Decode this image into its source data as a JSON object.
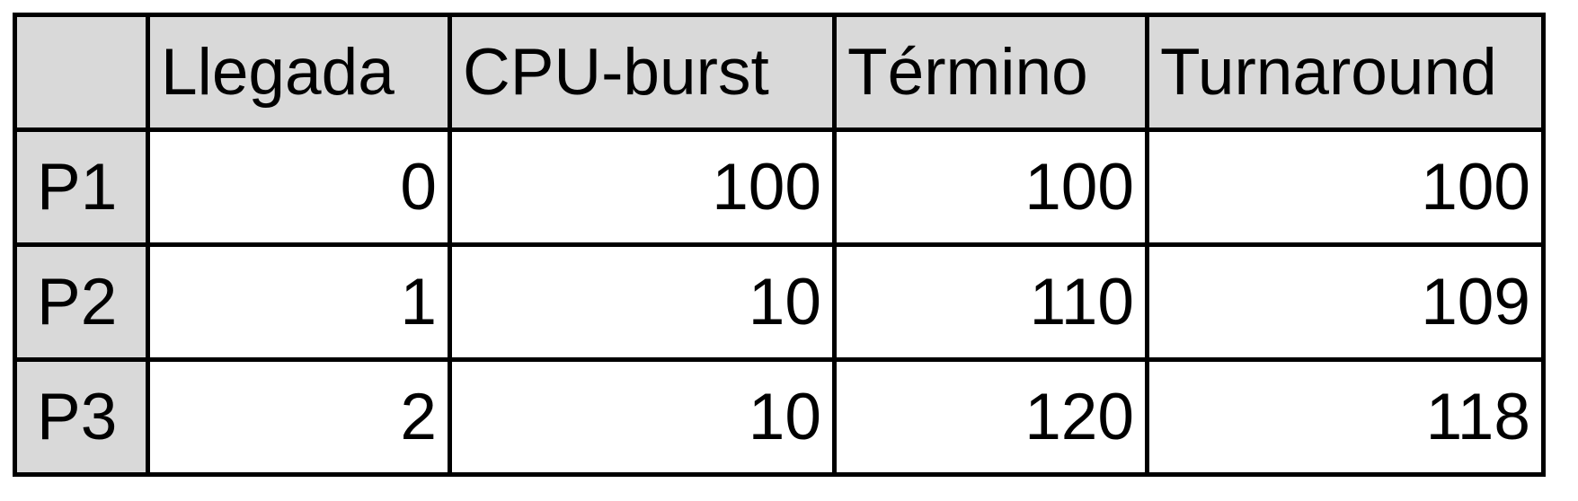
{
  "table": {
    "header": [
      "",
      "Llegada",
      "CPU-burst",
      "Término",
      "Turnaround"
    ],
    "rows": [
      {
        "label": "P1",
        "cells": [
          "0",
          "100",
          "100",
          "100"
        ]
      },
      {
        "label": "P2",
        "cells": [
          "1",
          "10",
          "110",
          "109"
        ]
      },
      {
        "label": "P3",
        "cells": [
          "2",
          "10",
          "120",
          "118"
        ]
      }
    ]
  },
  "colors": {
    "header_bg": "#d9d9d9",
    "cell_bg": "#ffffff",
    "border": "#000000",
    "text": "#000000"
  }
}
